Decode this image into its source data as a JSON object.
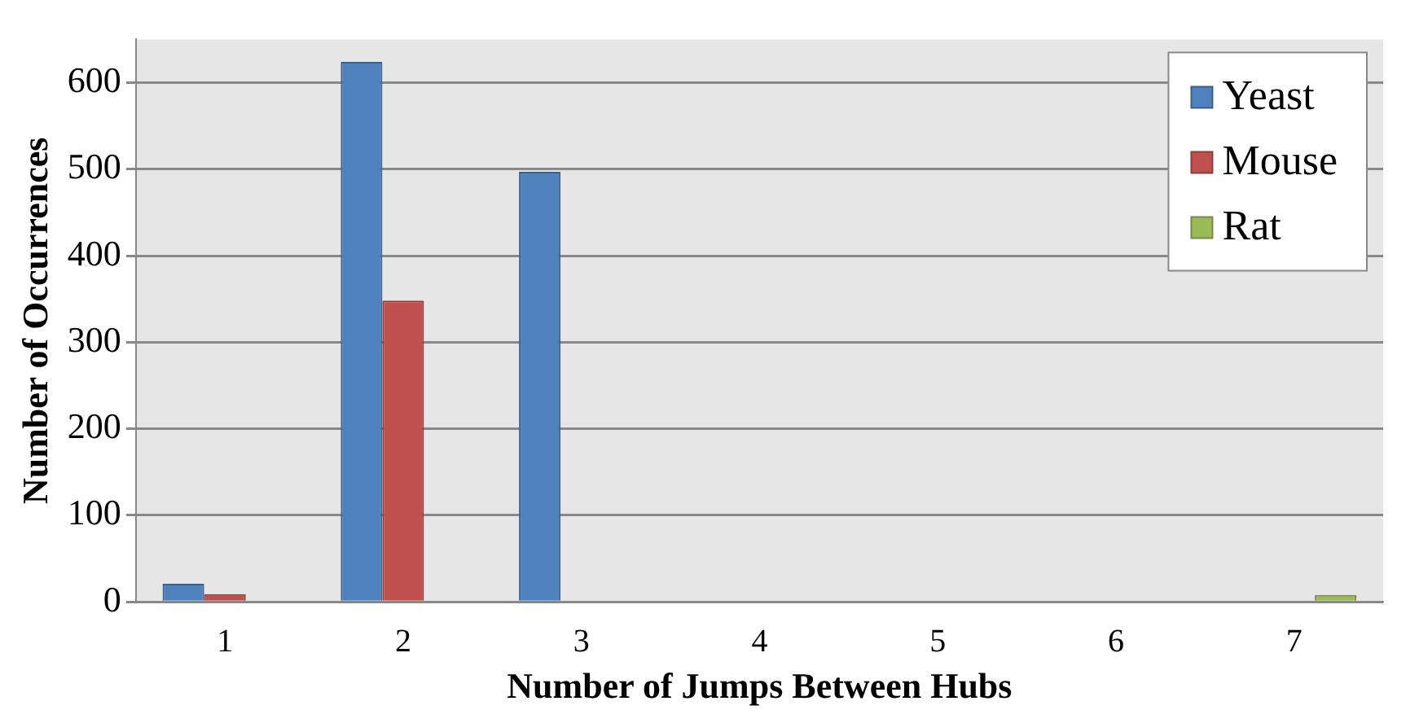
{
  "chart_data": {
    "type": "bar",
    "xlabel": "Number of Jumps Between Hubs",
    "ylabel": "Number of Occurrences",
    "categories": [
      "1",
      "2",
      "3",
      "4",
      "5",
      "6",
      "7"
    ],
    "series": [
      {
        "name": "Yeast",
        "color": "#4f81bd",
        "values": [
          21,
          624,
          497,
          0,
          0,
          0,
          0
        ]
      },
      {
        "name": "Mouse",
        "color": "#c0504d",
        "values": [
          9,
          348,
          0,
          0,
          0,
          0,
          0
        ]
      },
      {
        "name": "Rat",
        "color": "#9bbb59",
        "values": [
          0,
          0,
          0,
          0,
          0,
          0,
          8
        ]
      }
    ],
    "ylim": [
      0,
      650
    ],
    "yticks": [
      0,
      100,
      200,
      300,
      400,
      500,
      600
    ],
    "grid": "y",
    "legend": "top right"
  }
}
